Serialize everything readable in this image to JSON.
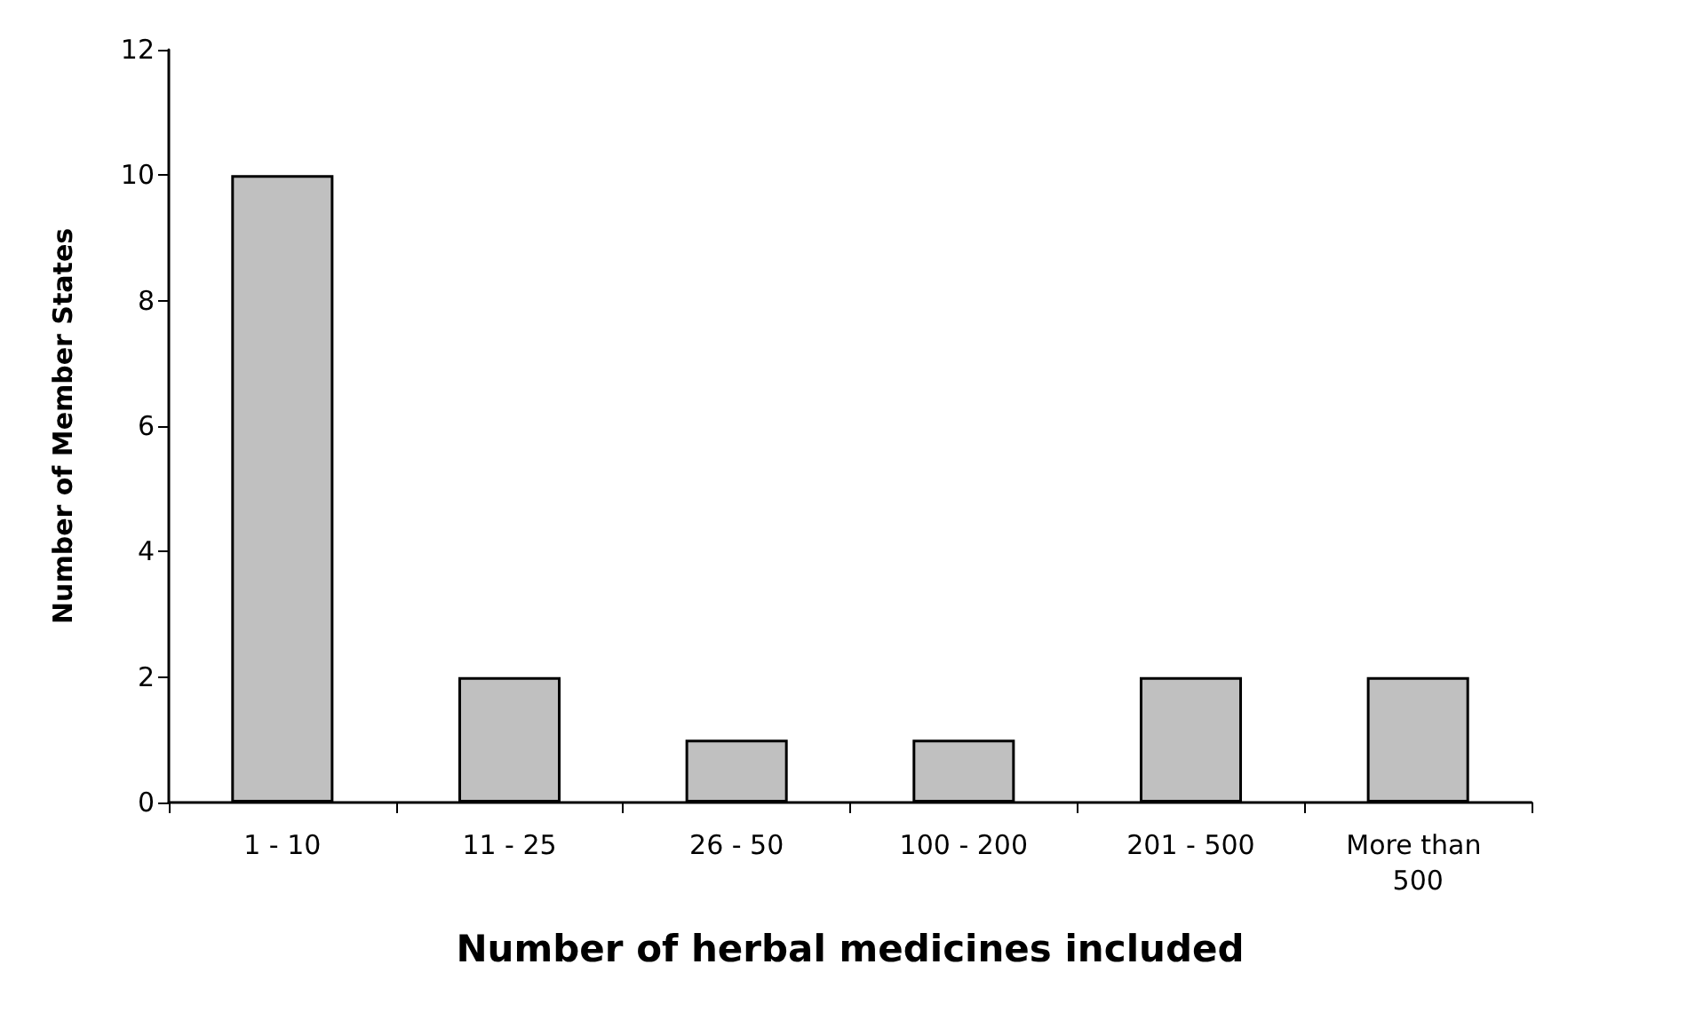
{
  "chart_data": {
    "type": "bar",
    "xlabel": "Number of herbal medicines included",
    "ylabel": "Number of Member States",
    "categories": [
      "1 - 10",
      "11 - 25",
      "26 - 50",
      "100 - 200",
      "201 - 500",
      "More than 500"
    ],
    "values": [
      10,
      2,
      1,
      1,
      2,
      2
    ],
    "color": "#c0c0c0",
    "ylim": [
      0,
      12
    ],
    "yticks": [
      0,
      2,
      4,
      6,
      8,
      10,
      12
    ],
    "grid": false
  }
}
